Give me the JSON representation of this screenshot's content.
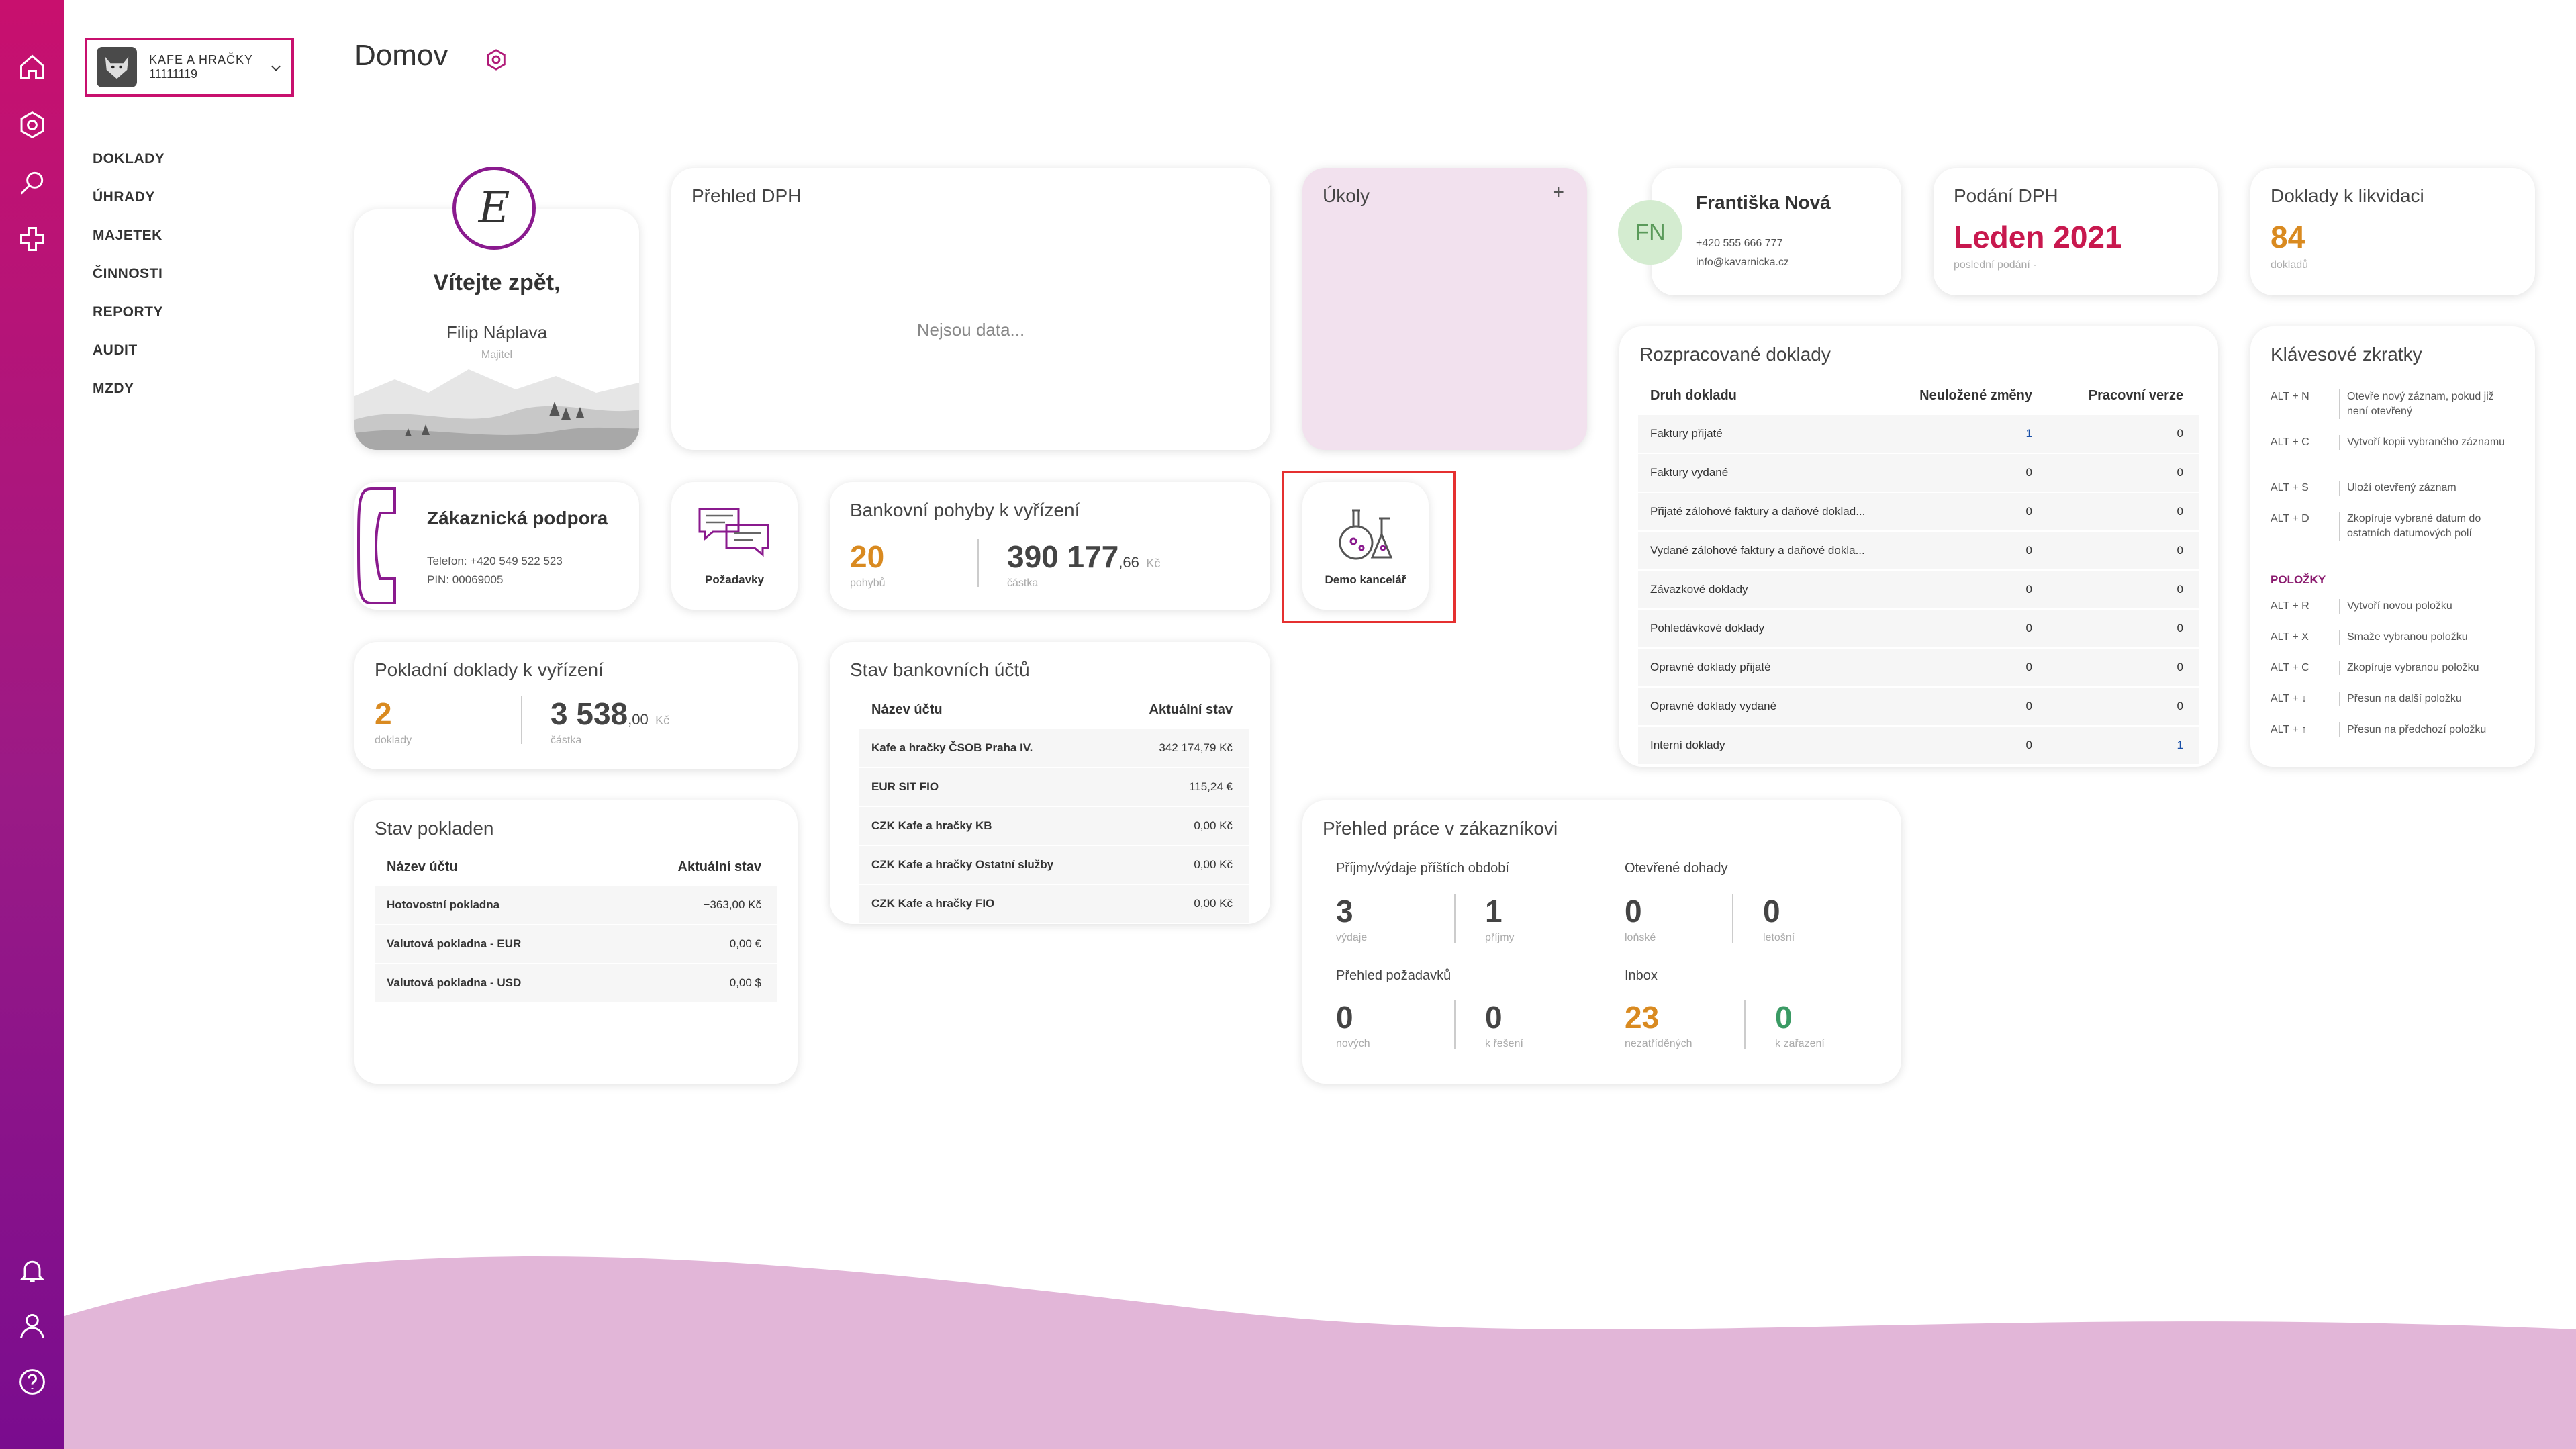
{
  "sidebar_icons": [
    "home-icon",
    "gear-icon",
    "search-icon",
    "plus-icon",
    "bell-icon",
    "user-icon",
    "help-icon"
  ],
  "company": {
    "name": "KAFE A HRAČKY",
    "id": "11111119"
  },
  "nav": [
    "DOKLADY",
    "ÚHRADY",
    "MAJETEK",
    "ČINNOSTI",
    "REPORTY",
    "AUDIT",
    "MZDY"
  ],
  "page_title": "Domov",
  "welcome": {
    "title": "Vítejte zpět,",
    "name": "Filip Náplava",
    "role": "Majitel",
    "avatar_letter": "E"
  },
  "vat_overview": {
    "title": "Přehled DPH",
    "empty": "Nejsou data..."
  },
  "tasks": {
    "title": "Úkoly",
    "add": "+"
  },
  "contact": {
    "initials": "FN",
    "name": "Františka Nová",
    "phone": "+420 555 666 777",
    "email": "info@kavarnicka.cz"
  },
  "vat_filing": {
    "title": "Podání DPH",
    "value": "Leden 2021",
    "sub": "poslední podání -"
  },
  "liquidation": {
    "title": "Doklady k likvidaci",
    "value": "84",
    "sub": "dokladů"
  },
  "support": {
    "title": "Zákaznická podpora",
    "phone": "Telefon: +420 549 522 523",
    "pin": "PIN: 00069005"
  },
  "requests": {
    "label": "Požadavky"
  },
  "bank_moves": {
    "title": "Bankovní pohyby k vyřízení",
    "count": "20",
    "count_label": "pohybů",
    "amount": "390 177",
    "amount_dec": ",66",
    "currency": "Kč",
    "amount_label": "částka"
  },
  "demo": {
    "label": "Demo kancelář"
  },
  "cash_docs": {
    "title": "Pokladní doklady k vyřízení",
    "count": "2",
    "count_label": "doklady",
    "amount": "3 538",
    "amount_dec": ",00",
    "currency": "Kč",
    "amount_label": "částka"
  },
  "bank_accounts": {
    "title": "Stav bankovních účtů",
    "col1": "Název účtu",
    "col2": "Aktuální stav",
    "rows": [
      {
        "name": "Kafe a hračky ČSOB Praha IV.",
        "value": "342 174,79 Kč"
      },
      {
        "name": "EUR SIT FIO",
        "value": "115,24 €"
      },
      {
        "name": "CZK Kafe a hračky KB",
        "value": "0,00 Kč"
      },
      {
        "name": "CZK Kafe a hračky Ostatní služby",
        "value": "0,00 Kč"
      },
      {
        "name": "CZK Kafe a hračky FIO",
        "value": "0,00 Kč"
      }
    ]
  },
  "cash_registers": {
    "title": "Stav pokladen",
    "col1": "Název účtu",
    "col2": "Aktuální stav",
    "rows": [
      {
        "name": "Hotovostní pokladna",
        "value": "−363,00 Kč"
      },
      {
        "name": "Valutová pokladna - EUR",
        "value": "0,00 €"
      },
      {
        "name": "Valutová pokladna - USD",
        "value": "0,00 $"
      }
    ]
  },
  "work_overview": {
    "title": "Přehled práce v zákazníkovi",
    "g1": {
      "title": "Příjmy/výdaje příštích období",
      "a": "3",
      "a_label": "výdaje",
      "b": "1",
      "b_label": "příjmy"
    },
    "g2": {
      "title": "Otevřené dohady",
      "a": "0",
      "a_label": "loňské",
      "b": "0",
      "b_label": "letošní"
    },
    "g3": {
      "title": "Přehled požadavků",
      "a": "0",
      "a_label": "nových",
      "b": "0",
      "b_label": "k řešení"
    },
    "g4": {
      "title": "Inbox",
      "a": "23",
      "a_label": "nezatříděných",
      "b": "0",
      "b_label": "k zařazení"
    }
  },
  "drafts": {
    "title": "Rozpracované doklady",
    "col1": "Druh dokladu",
    "col2": "Neuložené změny",
    "col3": "Pracovní verze",
    "rows": [
      {
        "name": "Faktury přijaté",
        "a": "1",
        "b": "0"
      },
      {
        "name": "Faktury vydané",
        "a": "0",
        "b": "0"
      },
      {
        "name": "Přijaté zálohové faktury a daňové doklad...",
        "a": "0",
        "b": "0"
      },
      {
        "name": "Vydané zálohové faktury a daňové dokla...",
        "a": "0",
        "b": "0"
      },
      {
        "name": "Závazkové doklady",
        "a": "0",
        "b": "0"
      },
      {
        "name": "Pohledávkové doklady",
        "a": "0",
        "b": "0"
      },
      {
        "name": "Opravné doklady přijaté",
        "a": "0",
        "b": "0"
      },
      {
        "name": "Opravné doklady vydané",
        "a": "0",
        "b": "0"
      },
      {
        "name": "Interní doklady",
        "a": "0",
        "b": "1"
      }
    ]
  },
  "shortcuts": {
    "title": "Klávesové zkratky",
    "section2": "POLOŽKY",
    "items": [
      {
        "key": "ALT + N",
        "desc": "Otevře nový záznam, pokud již není otevřený"
      },
      {
        "key": "ALT + C",
        "desc": "Vytvoří kopii vybraného záznamu"
      },
      {
        "key": "ALT + S",
        "desc": "Uloží otevřený záznam"
      },
      {
        "key": "ALT + D",
        "desc": "Zkopíruje vybrané datum do ostatních datumových polí"
      }
    ],
    "items2": [
      {
        "key": "ALT + R",
        "desc": "Vytvoří novou položku"
      },
      {
        "key": "ALT + X",
        "desc": "Smaže vybranou položku"
      },
      {
        "key": "ALT + C",
        "desc": "Zkopíruje vybranou položku"
      },
      {
        "key": "ALT + ↓",
        "desc": "Přesun na další položku"
      },
      {
        "key": "ALT + ↑",
        "desc": "Přesun na předchozí položku"
      }
    ]
  },
  "colors": {
    "accent": "#c8106e",
    "rail_bottom": "#7a0c8e",
    "wave": "#e2b6d8",
    "tasks_bg": "#f2e1ee"
  }
}
